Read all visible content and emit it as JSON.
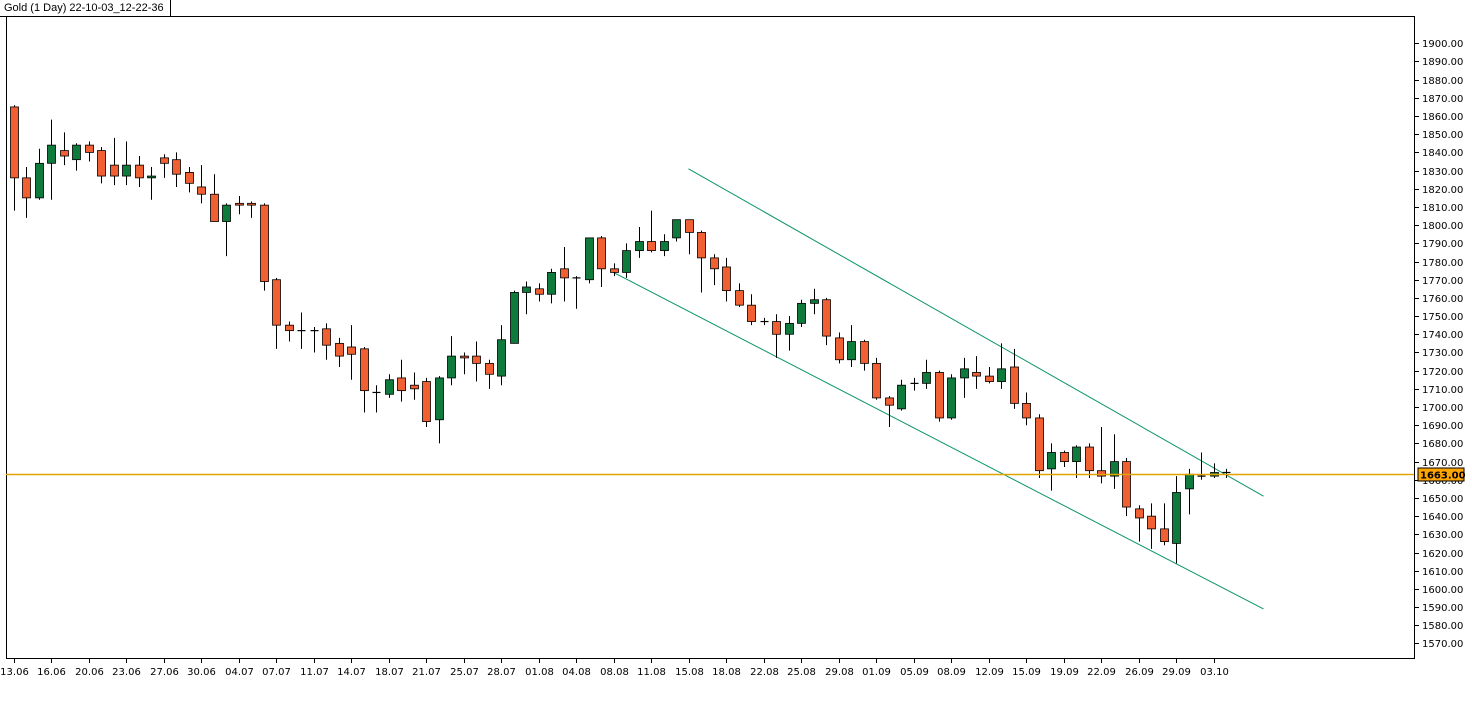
{
  "chart_data": {
    "type": "candlestick",
    "title": "Gold (1 Day) 22-10-03_12-22-36",
    "ylim": [
      1562,
      1915
    ],
    "y_ticks": [
      1570,
      1580,
      1590,
      1600,
      1610,
      1620,
      1630,
      1640,
      1650,
      1660,
      1670,
      1680,
      1690,
      1700,
      1710,
      1720,
      1730,
      1740,
      1750,
      1760,
      1770,
      1780,
      1790,
      1800,
      1810,
      1820,
      1830,
      1840,
      1850,
      1860,
      1870,
      1880,
      1890,
      1900
    ],
    "x_tick_labels": [
      {
        "index": 0,
        "label": "13.06"
      },
      {
        "index": 3,
        "label": "16.06"
      },
      {
        "index": 6,
        "label": "20.06"
      },
      {
        "index": 9,
        "label": "23.06"
      },
      {
        "index": 12,
        "label": "27.06"
      },
      {
        "index": 15,
        "label": "30.06"
      },
      {
        "index": 18,
        "label": "04.07"
      },
      {
        "index": 21,
        "label": "07.07"
      },
      {
        "index": 24,
        "label": "11.07"
      },
      {
        "index": 27,
        "label": "14.07"
      },
      {
        "index": 30,
        "label": "18.07"
      },
      {
        "index": 33,
        "label": "21.07"
      },
      {
        "index": 36,
        "label": "25.07"
      },
      {
        "index": 39,
        "label": "28.07"
      },
      {
        "index": 42,
        "label": "01.08"
      },
      {
        "index": 45,
        "label": "04.08"
      },
      {
        "index": 48,
        "label": "08.08"
      },
      {
        "index": 51,
        "label": "11.08"
      },
      {
        "index": 54,
        "label": "15.08"
      },
      {
        "index": 57,
        "label": "18.08"
      },
      {
        "index": 60,
        "label": "22.08"
      },
      {
        "index": 63,
        "label": "25.08"
      },
      {
        "index": 66,
        "label": "29.08"
      },
      {
        "index": 69,
        "label": "01.09"
      },
      {
        "index": 72,
        "label": "05.09"
      },
      {
        "index": 75,
        "label": "08.09"
      },
      {
        "index": 78,
        "label": "12.09"
      },
      {
        "index": 81,
        "label": "15.09"
      },
      {
        "index": 84,
        "label": "19.09"
      },
      {
        "index": 87,
        "label": "22.09"
      },
      {
        "index": 90,
        "label": "26.09"
      },
      {
        "index": 93,
        "label": "29.09"
      },
      {
        "index": 96,
        "label": "03.10"
      }
    ],
    "candles": [
      [
        1865,
        1866,
        1808,
        1826
      ],
      [
        1826,
        1832,
        1804,
        1815
      ],
      [
        1815,
        1842,
        1814,
        1834
      ],
      [
        1834,
        1858,
        1814,
        1844
      ],
      [
        1841,
        1851,
        1833,
        1838
      ],
      [
        1836,
        1845,
        1830,
        1844
      ],
      [
        1844,
        1846,
        1835,
        1840
      ],
      [
        1841,
        1843,
        1823,
        1827
      ],
      [
        1833,
        1848,
        1822,
        1827
      ],
      [
        1827,
        1846,
        1822,
        1833
      ],
      [
        1833,
        1838,
        1821,
        1826
      ],
      [
        1826,
        1832,
        1814,
        1827
      ],
      [
        1837,
        1839,
        1826,
        1834
      ],
      [
        1836,
        1840,
        1821,
        1828
      ],
      [
        1829,
        1832,
        1818,
        1823
      ],
      [
        1821,
        1833,
        1812,
        1817
      ],
      [
        1817,
        1828,
        1802,
        1802
      ],
      [
        1802,
        1812,
        1783,
        1811
      ],
      [
        1812,
        1816,
        1806,
        1811
      ],
      [
        1812,
        1813,
        1804,
        1811
      ],
      [
        1811,
        1812,
        1764,
        1769
      ],
      [
        1770,
        1771,
        1732,
        1745
      ],
      [
        1745,
        1747,
        1736,
        1742
      ],
      [
        1742,
        1752,
        1732,
        1742
      ],
      [
        1742,
        1744,
        1730,
        1742
      ],
      [
        1743,
        1746,
        1726,
        1734
      ],
      [
        1735,
        1738,
        1722,
        1728
      ],
      [
        1733,
        1745,
        1715,
        1729
      ],
      [
        1732,
        1733,
        1697,
        1709
      ],
      [
        1708,
        1712,
        1697,
        1708
      ],
      [
        1707,
        1718,
        1705,
        1715
      ],
      [
        1716,
        1726,
        1703,
        1709
      ],
      [
        1712,
        1719,
        1704,
        1710
      ],
      [
        1714,
        1716,
        1689,
        1692
      ],
      [
        1693,
        1717,
        1680,
        1716
      ],
      [
        1716,
        1739,
        1712,
        1728
      ],
      [
        1728,
        1730,
        1718,
        1727
      ],
      [
        1728,
        1736,
        1714,
        1724
      ],
      [
        1724,
        1726,
        1710,
        1718
      ],
      [
        1717,
        1745,
        1712,
        1737
      ],
      [
        1735,
        1764,
        1735,
        1763
      ],
      [
        1763,
        1769,
        1751,
        1766
      ],
      [
        1765,
        1768,
        1758,
        1762
      ],
      [
        1762,
        1776,
        1757,
        1774
      ],
      [
        1776,
        1788,
        1758,
        1771
      ],
      [
        1771,
        1772,
        1754,
        1771
      ],
      [
        1770,
        1793,
        1768,
        1793
      ],
      [
        1793,
        1794,
        1766,
        1776
      ],
      [
        1776,
        1779,
        1772,
        1774
      ],
      [
        1774,
        1790,
        1771,
        1786
      ],
      [
        1786,
        1799,
        1782,
        1791
      ],
      [
        1791,
        1808,
        1785,
        1786
      ],
      [
        1786,
        1795,
        1783,
        1791
      ],
      [
        1793,
        1803,
        1791,
        1803
      ],
      [
        1803,
        1803,
        1784,
        1796
      ],
      [
        1796,
        1797,
        1763,
        1782
      ],
      [
        1782,
        1784,
        1767,
        1776
      ],
      [
        1777,
        1782,
        1758,
        1764
      ],
      [
        1764,
        1768,
        1755,
        1756
      ],
      [
        1756,
        1762,
        1745,
        1747
      ],
      [
        1747,
        1749,
        1745,
        1747
      ],
      [
        1747,
        1751,
        1727,
        1740
      ],
      [
        1740,
        1750,
        1731,
        1746
      ],
      [
        1746,
        1759,
        1744,
        1757
      ],
      [
        1757,
        1765,
        1751,
        1759
      ],
      [
        1759,
        1760,
        1734,
        1739
      ],
      [
        1738,
        1741,
        1724,
        1726
      ],
      [
        1726,
        1745,
        1722,
        1736
      ],
      [
        1736,
        1737,
        1720,
        1724
      ],
      [
        1724,
        1727,
        1704,
        1705
      ],
      [
        1705,
        1706,
        1689,
        1701
      ],
      [
        1699,
        1715,
        1698,
        1712
      ],
      [
        1713,
        1716,
        1709,
        1713
      ],
      [
        1713,
        1726,
        1710,
        1719
      ],
      [
        1719,
        1720,
        1692,
        1694
      ],
      [
        1694,
        1718,
        1693,
        1716
      ],
      [
        1716,
        1727,
        1705,
        1721
      ],
      [
        1719,
        1728,
        1710,
        1717
      ],
      [
        1717,
        1722,
        1713,
        1714
      ],
      [
        1714,
        1735,
        1710,
        1721
      ],
      [
        1722,
        1732,
        1699,
        1702
      ],
      [
        1702,
        1708,
        1690,
        1694
      ],
      [
        1694,
        1696,
        1661,
        1665
      ],
      [
        1666,
        1680,
        1654,
        1675
      ],
      [
        1675,
        1676,
        1667,
        1670
      ],
      [
        1670,
        1679,
        1661,
        1678
      ],
      [
        1678,
        1680,
        1661,
        1665
      ],
      [
        1665,
        1689,
        1658,
        1662
      ],
      [
        1662,
        1685,
        1655,
        1670
      ],
      [
        1670,
        1672,
        1640,
        1645
      ],
      [
        1644,
        1646,
        1626,
        1639
      ],
      [
        1640,
        1647,
        1622,
        1633
      ],
      [
        1633,
        1647,
        1624,
        1626
      ],
      [
        1625,
        1662,
        1614,
        1653
      ],
      [
        1655,
        1666,
        1641,
        1663
      ],
      [
        1662,
        1675,
        1660,
        1662
      ],
      [
        1662,
        1669,
        1661,
        1664
      ],
      [
        1664,
        1666,
        1661,
        1664
      ]
    ],
    "trendlines": [
      {
        "from": [
          54,
          1831
        ],
        "to": [
          100,
          1651
        ]
      },
      {
        "from": [
          48,
          1774
        ],
        "to": [
          100,
          1589
        ]
      }
    ],
    "current_price": {
      "value": 1663,
      "label": "1663.00"
    },
    "colors": {
      "bull": "#0e7a3c",
      "bear": "#f06032",
      "wick": "#000000",
      "trendline": "#0b9468",
      "current_price_line": "#e2a200",
      "price_tag_bg": "#ffa500"
    }
  }
}
